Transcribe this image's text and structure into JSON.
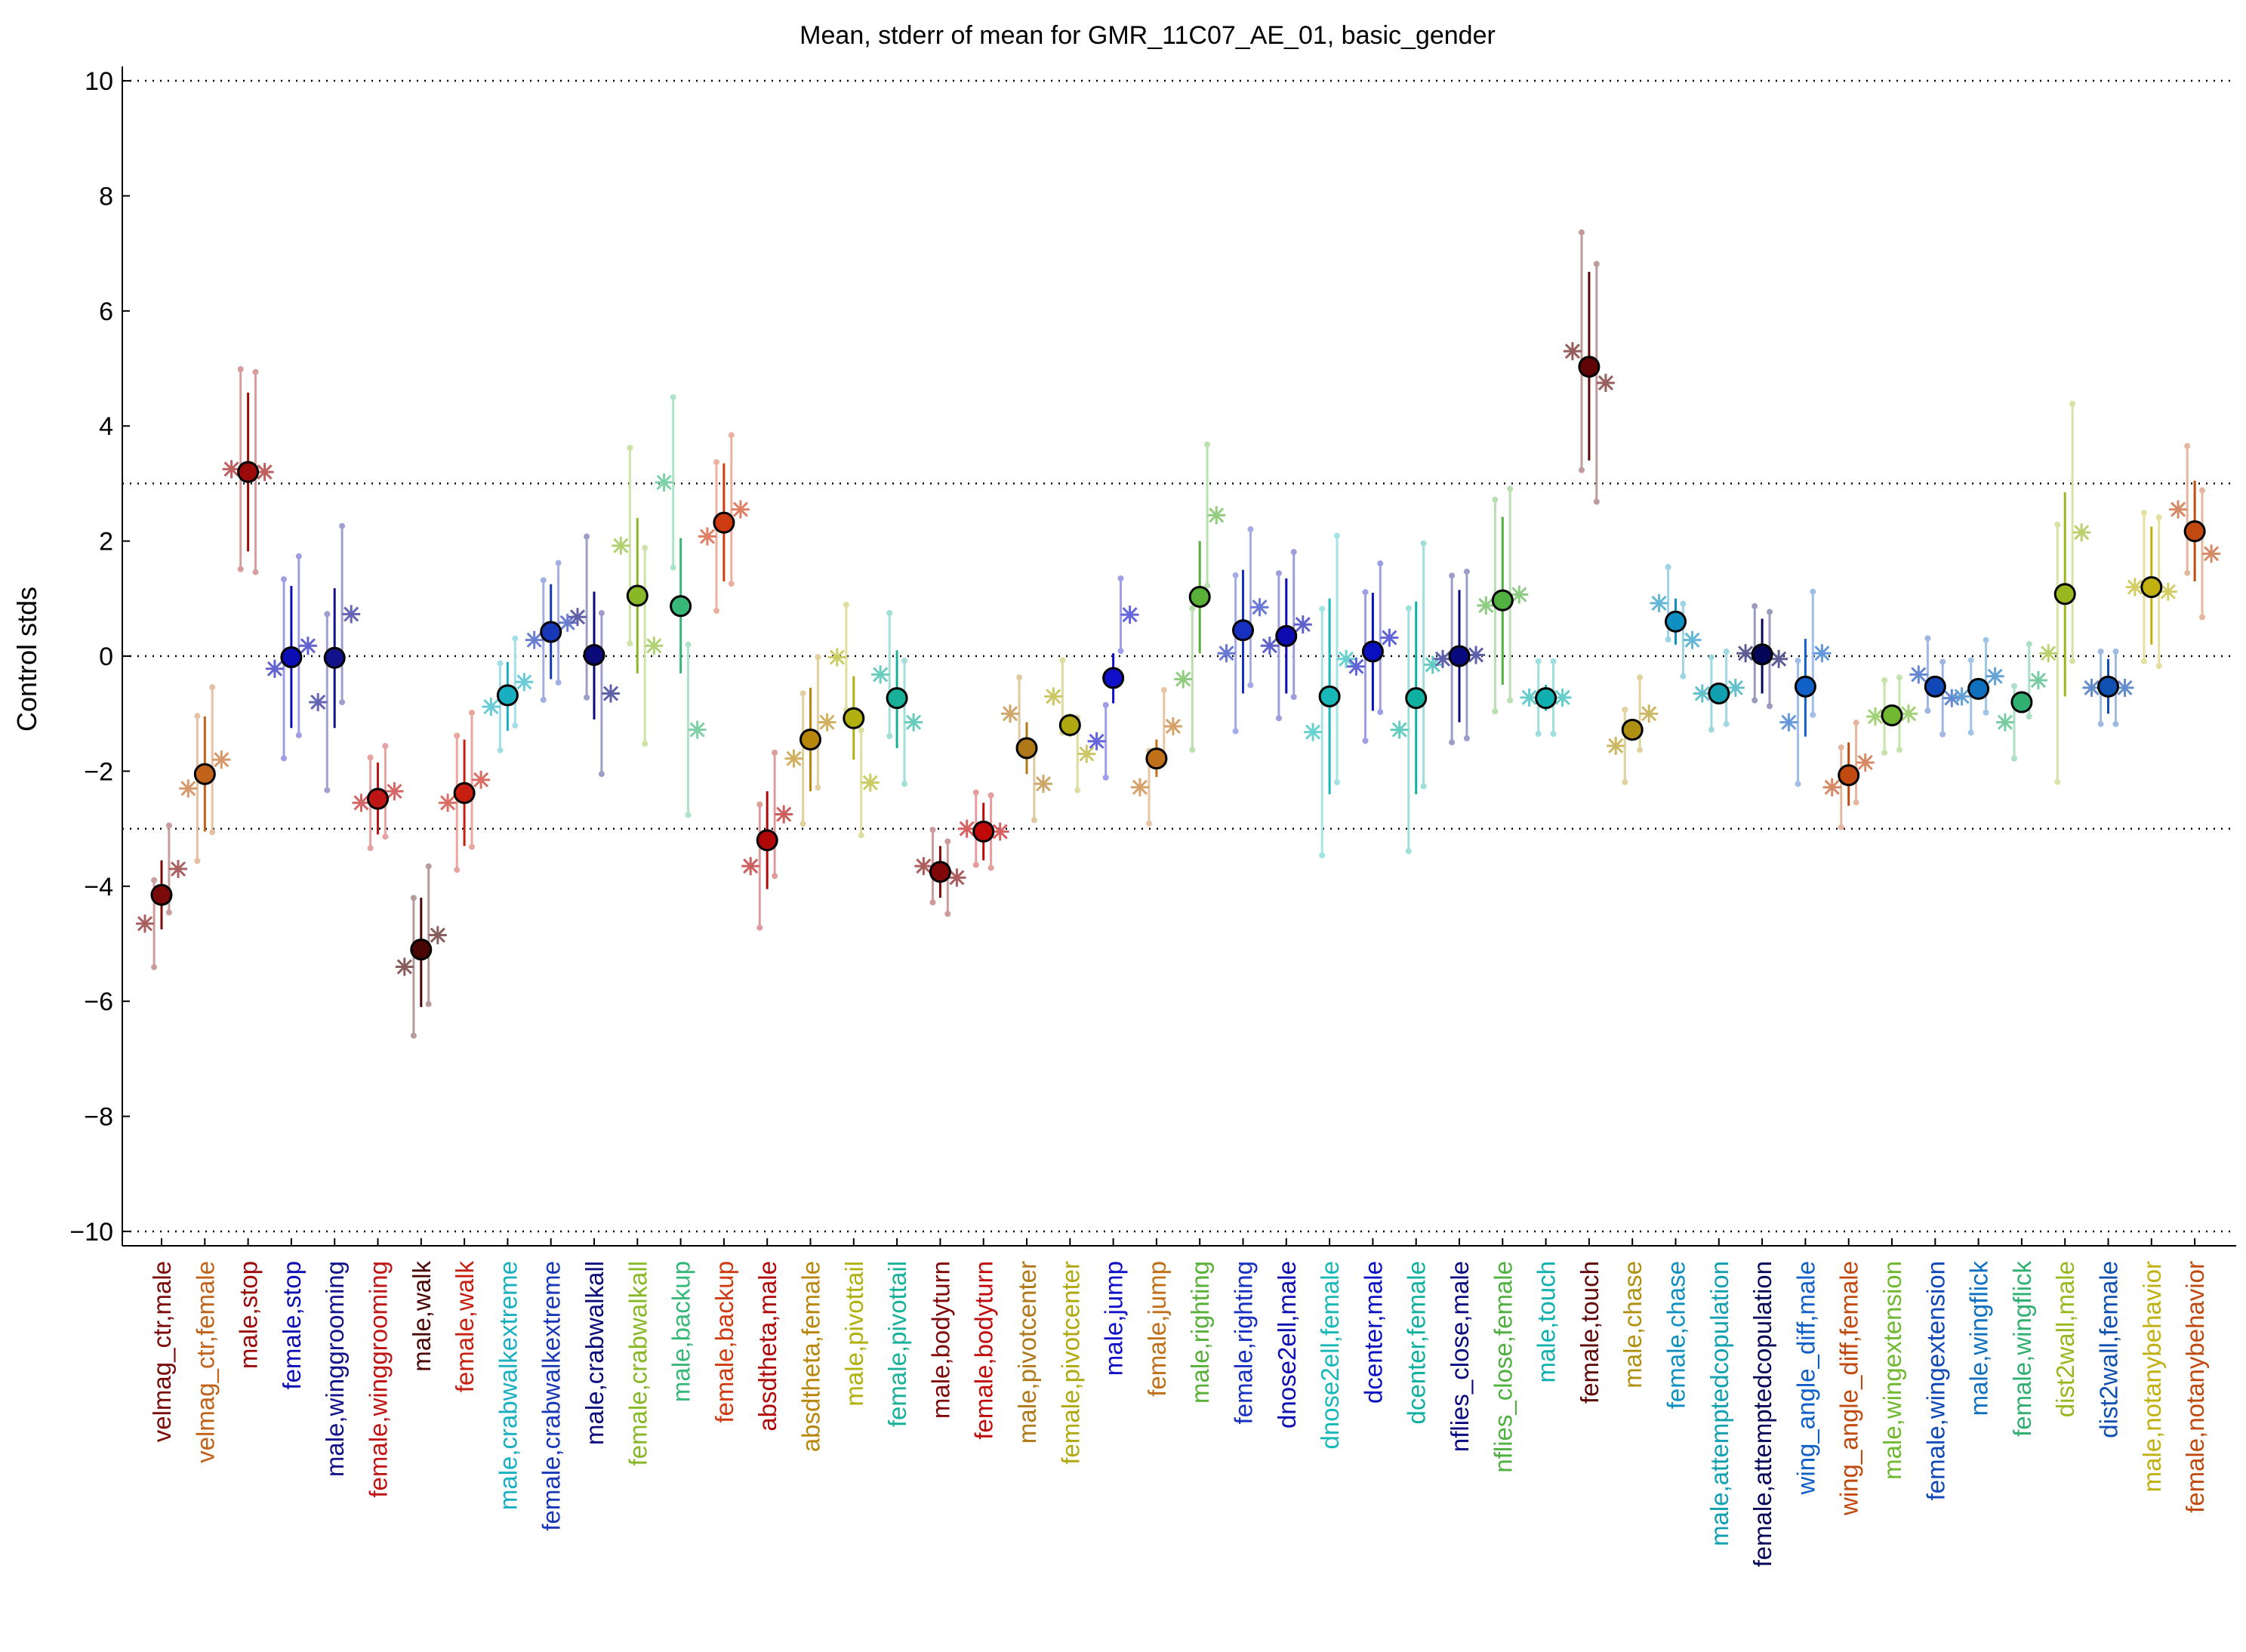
{
  "chart_data": {
    "type": "scatter",
    "title": "Mean, stderr of mean for GMR_11C07_AE_01, basic_gender",
    "xlabel": "",
    "ylabel": "Control stds",
    "ylim": [
      -10.25,
      10.25
    ],
    "yticks": [
      -10,
      -8,
      -6,
      -4,
      -2,
      0,
      2,
      4,
      6,
      8,
      10
    ],
    "ytick_labels": [
      "−10",
      "−8",
      "−6",
      "−4",
      "−2",
      "0",
      "2",
      "4",
      "6",
      "8",
      "10"
    ],
    "reference_lines": [
      -10,
      -3,
      0,
      3,
      10
    ],
    "grid": false,
    "legend": "none",
    "categories": [
      "velmag_ctr,male",
      "velmag_ctr,female",
      "male,stop",
      "female,stop",
      "male,winggrooming",
      "female,winggrooming",
      "male,walk",
      "female,walk",
      "male,crabwalkextreme",
      "female,crabwalkextreme",
      "male,crabwalkall",
      "female,crabwalkall",
      "male,backup",
      "female,backup",
      "absdtheta,male",
      "absdtheta,female",
      "male,pivottail",
      "female,pivottail",
      "male,bodyturn",
      "female,bodyturn",
      "male,pivotcenter",
      "female,pivotcenter",
      "male,jump",
      "female,jump",
      "male,righting",
      "female,righting",
      "dnose2ell,male",
      "dnose2ell,female",
      "dcenter,male",
      "dcenter,female",
      "nflies_close,male",
      "nflies_close,female",
      "male,touch",
      "female,touch",
      "male,chase",
      "female,chase",
      "male,attemptedcopulation",
      "female,attemptedcopulation",
      "wing_angle_diff,male",
      "wing_angle_diff,female",
      "male,wingextension",
      "female,wingextension",
      "male,wingflick",
      "female,wingflick",
      "dist2wall,male",
      "dist2wall,female",
      "male,notanybehavior",
      "female,notanybehavior"
    ],
    "colors": [
      "#7a0a0a",
      "#c0621a",
      "#9b0a0a",
      "#0d0db5",
      "#12128a",
      "#c01515",
      "#4a0505",
      "#c82010",
      "#18b0c0",
      "#1838b8",
      "#0a0a7a",
      "#88b828",
      "#38b878",
      "#d03a10",
      "#b00808",
      "#b8860b",
      "#b0b010",
      "#18b098",
      "#800808",
      "#c00a0a",
      "#b07818",
      "#b0a810",
      "#1010c8",
      "#c07018",
      "#58b038",
      "#1830c0",
      "#0c0cb0",
      "#18b8b8",
      "#0a10c0",
      "#10b0a0",
      "#0a0a80",
      "#50b040",
      "#10b0b0",
      "#600505",
      "#b09010",
      "#1090c0",
      "#10a0b0",
      "#05055a",
      "#1060c8",
      "#c04a10",
      "#70b830",
      "#1048b8",
      "#1070c0",
      "#30b070",
      "#98b820",
      "#1050b0",
      "#c0b010",
      "#c04a10"
    ],
    "series": [
      {
        "name": "mean",
        "values": [
          -4.15,
          -2.05,
          3.2,
          -0.02,
          -0.03,
          -2.48,
          -5.1,
          -2.38,
          -0.68,
          0.42,
          0.02,
          1.05,
          0.87,
          2.32,
          -3.2,
          -1.45,
          -1.08,
          -0.73,
          -3.75,
          -3.05,
          -1.6,
          -1.2,
          -0.38,
          -1.78,
          1.03,
          0.45,
          0.35,
          -0.7,
          0.08,
          -0.73,
          0.0,
          0.97,
          -0.73,
          5.03,
          -1.28,
          0.6,
          -0.65,
          0.03,
          -0.53,
          -2.07,
          -1.03,
          -0.53,
          -0.57,
          -0.8,
          1.08,
          -0.53,
          1.2,
          2.17
        ]
      },
      {
        "name": "stderr_low",
        "values": [
          -4.75,
          -3.05,
          1.82,
          -1.25,
          -1.25,
          -3.1,
          -6.1,
          -3.3,
          -1.3,
          -0.4,
          -1.1,
          -0.3,
          -0.3,
          1.3,
          -4.05,
          -2.35,
          -1.8,
          -1.6,
          -4.2,
          -3.55,
          -2.05,
          -1.4,
          -0.82,
          -2.1,
          0.05,
          -0.65,
          -0.65,
          -2.4,
          -0.95,
          -2.4,
          -1.15,
          -0.5,
          -0.95,
          3.4,
          -1.3,
          0.2,
          -0.65,
          -0.65,
          -1.4,
          -2.6,
          -1.03,
          -0.53,
          -0.57,
          -0.8,
          -0.7,
          -1.0,
          0.2,
          1.3
        ]
      },
      {
        "name": "stderr_high",
        "values": [
          -3.55,
          -1.05,
          4.58,
          1.22,
          1.18,
          -1.85,
          -4.2,
          -1.45,
          -0.1,
          1.25,
          1.12,
          2.4,
          2.05,
          3.35,
          -2.35,
          -0.55,
          -0.35,
          0.1,
          -3.3,
          -2.55,
          -1.15,
          -1.0,
          0.05,
          -1.45,
          2.0,
          1.5,
          1.35,
          1.0,
          1.1,
          0.95,
          1.15,
          2.42,
          -0.5,
          6.68,
          -1.2,
          1.0,
          -0.6,
          0.65,
          0.3,
          -1.5,
          -1.03,
          -0.53,
          -0.57,
          -0.8,
          2.85,
          -0.05,
          2.25,
          3.05
        ]
      },
      {
        "name": "exp_1",
        "values": [
          -4.65,
          -2.3,
          3.25,
          -0.22,
          -0.8,
          -2.55,
          -5.4,
          -2.55,
          -0.88,
          0.28,
          0.68,
          1.92,
          3.02,
          2.08,
          -3.65,
          -1.78,
          -0.02,
          -0.32,
          -3.65,
          -3.0,
          -1.0,
          -0.7,
          -1.48,
          -2.28,
          -0.4,
          0.05,
          0.18,
          -1.32,
          -0.18,
          -1.28,
          -0.05,
          0.88,
          -0.72,
          5.3,
          -1.56,
          0.92,
          -0.65,
          0.05,
          -1.15,
          -2.28,
          -1.05,
          -0.32,
          -0.7,
          -1.15,
          0.05,
          -0.55,
          1.2,
          2.55
        ]
      },
      {
        "name": "exp_2",
        "values": [
          -3.7,
          -1.8,
          3.2,
          0.18,
          0.73,
          -2.35,
          -4.85,
          -2.15,
          -0.45,
          0.58,
          -0.65,
          0.18,
          -1.28,
          2.55,
          -2.75,
          -1.15,
          -2.2,
          -1.15,
          -3.85,
          -3.05,
          -2.22,
          -1.7,
          0.72,
          -1.22,
          2.45,
          0.85,
          0.55,
          -0.05,
          0.32,
          -0.15,
          0.02,
          1.07,
          -0.72,
          4.75,
          -1.0,
          0.28,
          -0.55,
          -0.05,
          0.05,
          -1.85,
          -1.0,
          -0.73,
          -0.35,
          -0.42,
          2.15,
          -0.55,
          1.12,
          1.78
        ]
      }
    ]
  }
}
